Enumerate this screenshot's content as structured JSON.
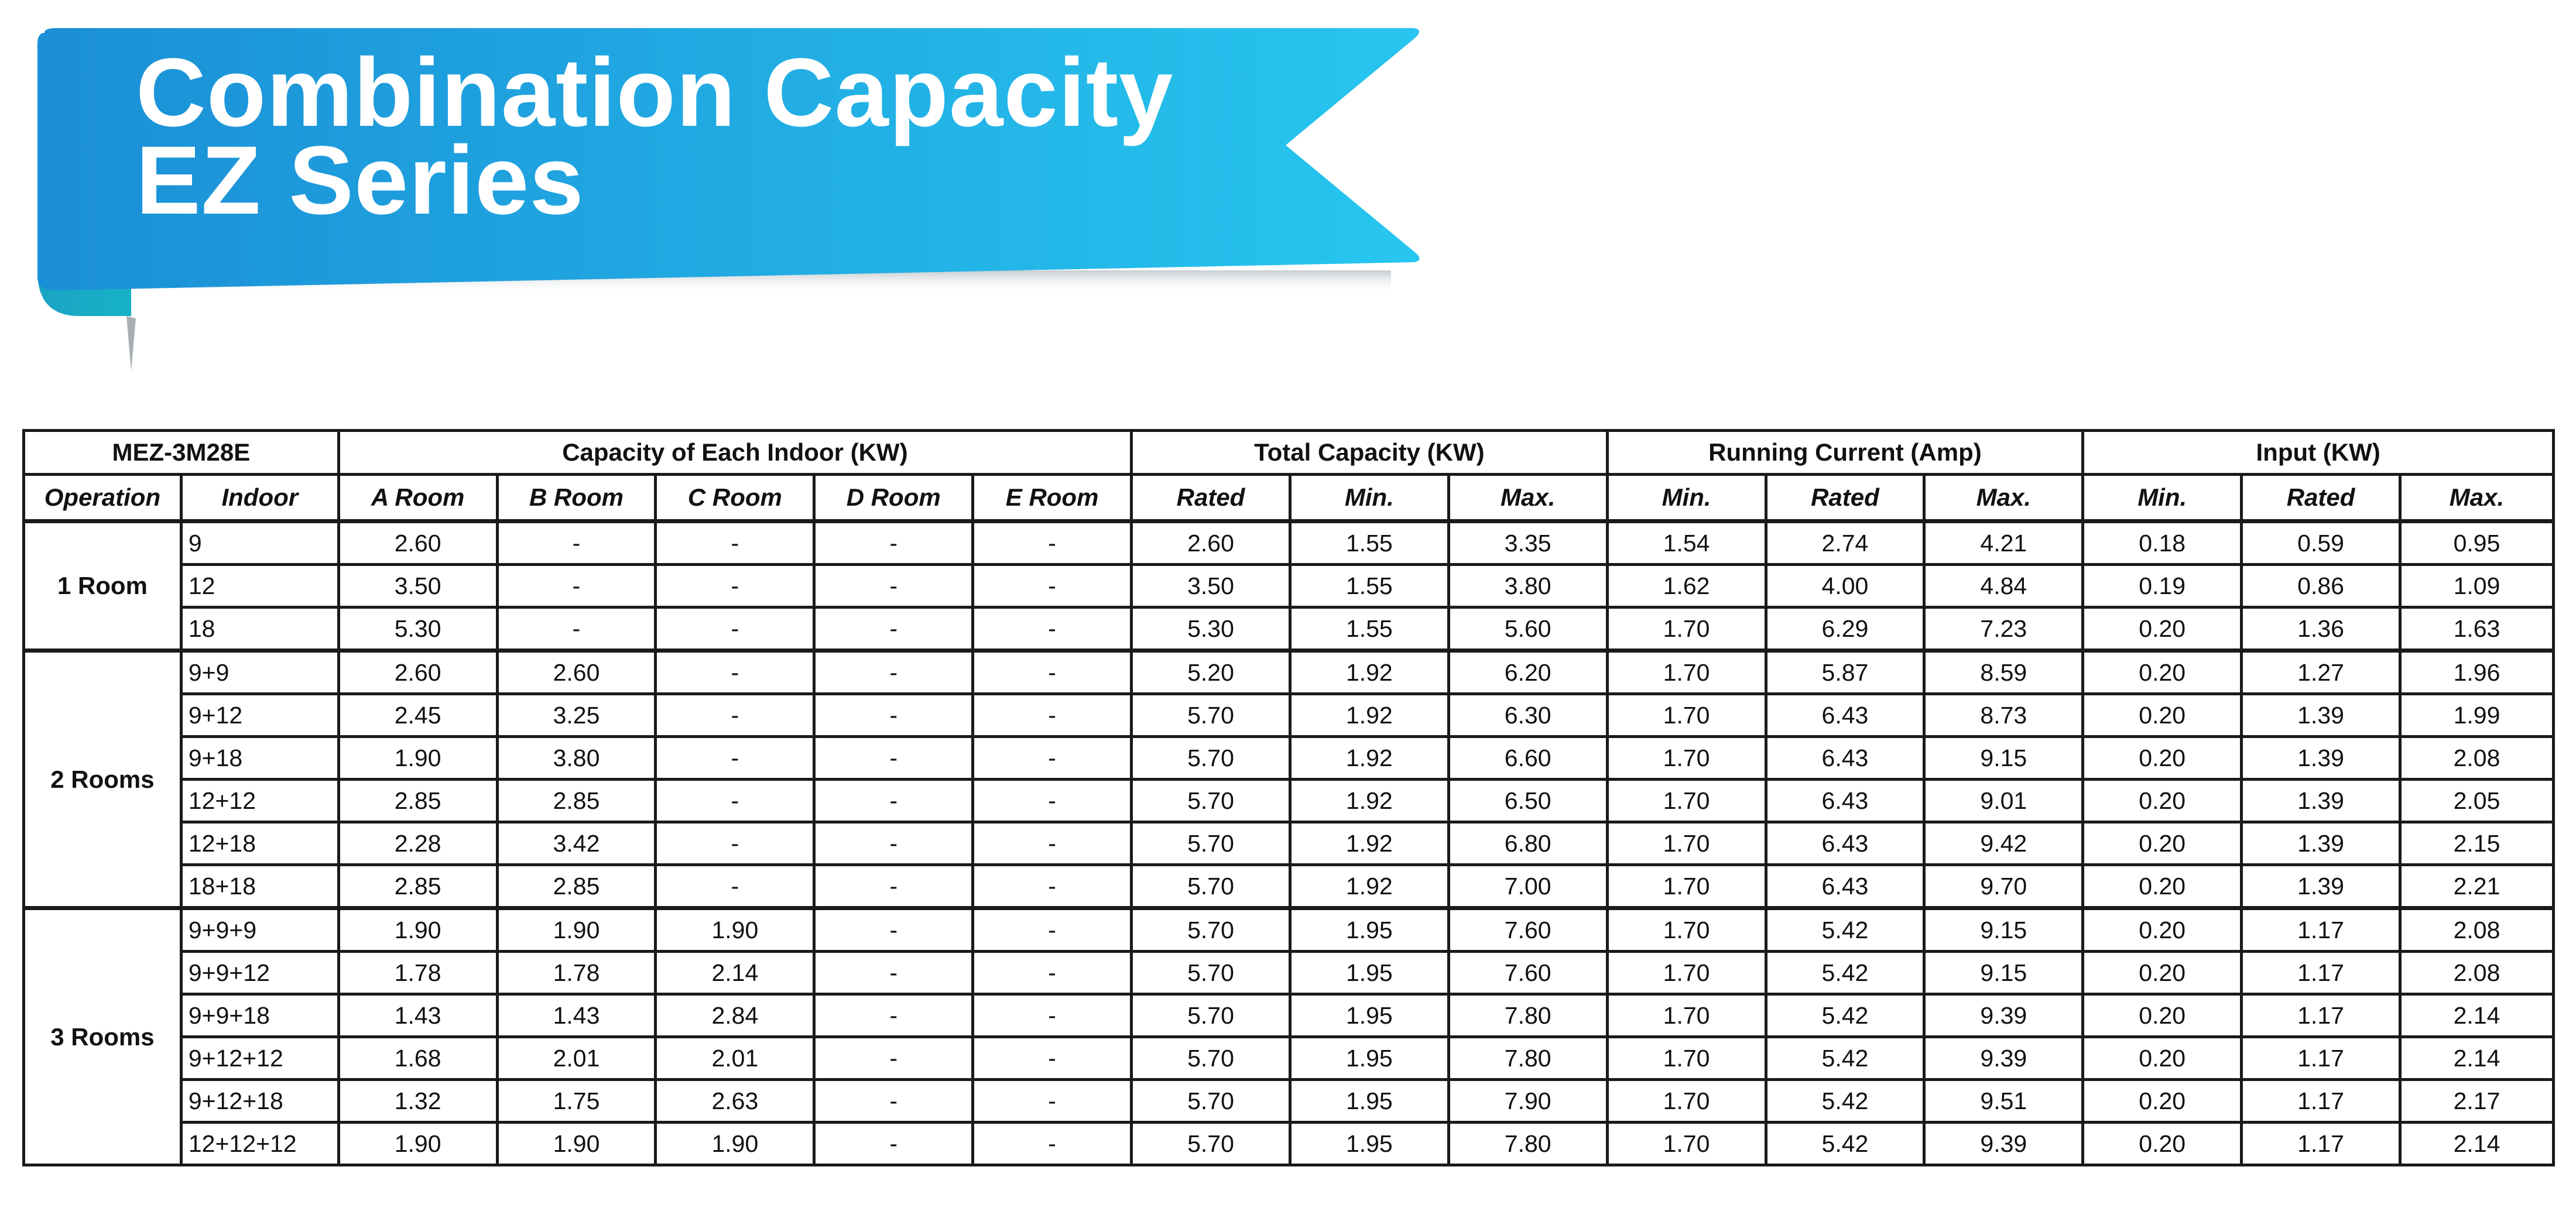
{
  "banner": {
    "title_line1": "Combination Capacity",
    "title_line2": "EZ Series",
    "colors": {
      "start": "#1b8fd6",
      "end": "#27c6ef",
      "fold": "#17b2c7"
    }
  },
  "table": {
    "model": "MEZ-3M28E",
    "groups": {
      "capacity": "Capacity of Each Indoor (KW)",
      "total": "Total Capacity (KW)",
      "current": "Running Current (Amp)",
      "input": "Input (KW)"
    },
    "columns": {
      "operation": "Operation",
      "indoor": "Indoor",
      "a_room": "A Room",
      "b_room": "B Room",
      "c_room": "C Room",
      "d_room": "D Room",
      "e_room": "E Room",
      "total_rated": "Rated",
      "total_min": "Min.",
      "total_max": "Max.",
      "current_min": "Min.",
      "current_rated": "Rated",
      "current_max": "Max.",
      "input_min": "Min.",
      "input_rated": "Rated",
      "input_max": "Max."
    },
    "sections": [
      {
        "operation": "1 Room",
        "rows": [
          [
            "9",
            "2.60",
            "-",
            "-",
            "-",
            "-",
            "2.60",
            "1.55",
            "3.35",
            "1.54",
            "2.74",
            "4.21",
            "0.18",
            "0.59",
            "0.95"
          ],
          [
            "12",
            "3.50",
            "-",
            "-",
            "-",
            "-",
            "3.50",
            "1.55",
            "3.80",
            "1.62",
            "4.00",
            "4.84",
            "0.19",
            "0.86",
            "1.09"
          ],
          [
            "18",
            "5.30",
            "-",
            "-",
            "-",
            "-",
            "5.30",
            "1.55",
            "5.60",
            "1.70",
            "6.29",
            "7.23",
            "0.20",
            "1.36",
            "1.63"
          ]
        ]
      },
      {
        "operation": "2 Rooms",
        "rows": [
          [
            "9+9",
            "2.60",
            "2.60",
            "-",
            "-",
            "-",
            "5.20",
            "1.92",
            "6.20",
            "1.70",
            "5.87",
            "8.59",
            "0.20",
            "1.27",
            "1.96"
          ],
          [
            "9+12",
            "2.45",
            "3.25",
            "-",
            "-",
            "-",
            "5.70",
            "1.92",
            "6.30",
            "1.70",
            "6.43",
            "8.73",
            "0.20",
            "1.39",
            "1.99"
          ],
          [
            "9+18",
            "1.90",
            "3.80",
            "-",
            "-",
            "-",
            "5.70",
            "1.92",
            "6.60",
            "1.70",
            "6.43",
            "9.15",
            "0.20",
            "1.39",
            "2.08"
          ],
          [
            "12+12",
            "2.85",
            "2.85",
            "-",
            "-",
            "-",
            "5.70",
            "1.92",
            "6.50",
            "1.70",
            "6.43",
            "9.01",
            "0.20",
            "1.39",
            "2.05"
          ],
          [
            "12+18",
            "2.28",
            "3.42",
            "-",
            "-",
            "-",
            "5.70",
            "1.92",
            "6.80",
            "1.70",
            "6.43",
            "9.42",
            "0.20",
            "1.39",
            "2.15"
          ],
          [
            "18+18",
            "2.85",
            "2.85",
            "-",
            "-",
            "-",
            "5.70",
            "1.92",
            "7.00",
            "1.70",
            "6.43",
            "9.70",
            "0.20",
            "1.39",
            "2.21"
          ]
        ]
      },
      {
        "operation": "3 Rooms",
        "rows": [
          [
            "9+9+9",
            "1.90",
            "1.90",
            "1.90",
            "-",
            "-",
            "5.70",
            "1.95",
            "7.60",
            "1.70",
            "5.42",
            "9.15",
            "0.20",
            "1.17",
            "2.08"
          ],
          [
            "9+9+12",
            "1.78",
            "1.78",
            "2.14",
            "-",
            "-",
            "5.70",
            "1.95",
            "7.60",
            "1.70",
            "5.42",
            "9.15",
            "0.20",
            "1.17",
            "2.08"
          ],
          [
            "9+9+18",
            "1.43",
            "1.43",
            "2.84",
            "-",
            "-",
            "5.70",
            "1.95",
            "7.80",
            "1.70",
            "5.42",
            "9.39",
            "0.20",
            "1.17",
            "2.14"
          ],
          [
            "9+12+12",
            "1.68",
            "2.01",
            "2.01",
            "-",
            "-",
            "5.70",
            "1.95",
            "7.80",
            "1.70",
            "5.42",
            "9.39",
            "0.20",
            "1.17",
            "2.14"
          ],
          [
            "9+12+18",
            "1.32",
            "1.75",
            "2.63",
            "-",
            "-",
            "5.70",
            "1.95",
            "7.90",
            "1.70",
            "5.42",
            "9.51",
            "0.20",
            "1.17",
            "2.17"
          ],
          [
            "12+12+12",
            "1.90",
            "1.90",
            "1.90",
            "-",
            "-",
            "5.70",
            "1.95",
            "7.80",
            "1.70",
            "5.42",
            "9.39",
            "0.20",
            "1.17",
            "2.14"
          ]
        ]
      }
    ]
  }
}
